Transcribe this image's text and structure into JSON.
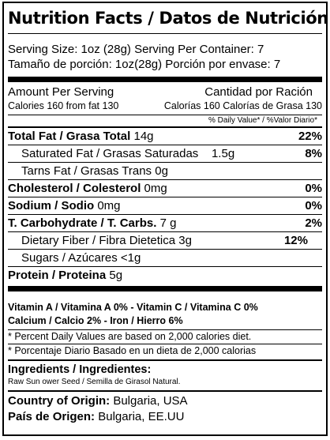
{
  "title": "Nutrition Facts / Datos de Nutrición",
  "serving": {
    "line_en": "Serving Size: 1oz (28g) Serving Per Container: 7",
    "line_es": "Tamaño de porción: 1oz(28g) Porción por envase: 7"
  },
  "amount": {
    "header_en": "Amount Per Serving",
    "header_es": "Cantidad por Ración",
    "calories_en": "Calories 160  from fat 130",
    "calories_es": "Calorías 160 Calorías de Grasa 130",
    "dv_header": "% Daily Value* / %Valor Diario*"
  },
  "nutrients": [
    {
      "name": "Total Fat / Grasa Total",
      "amount": "14g",
      "dv": "22%",
      "bold": true,
      "indent": false
    },
    {
      "name": "Saturated Fat / Grasas Saturadas",
      "amount": "1.5g",
      "dv": "8%",
      "bold": false,
      "indent": true
    },
    {
      "name": "Tarns Fat / Grasas Trans",
      "amount": "0g",
      "dv": "",
      "bold": false,
      "indent": true
    },
    {
      "name": "Cholesterol / Colesterol",
      "amount": "0mg",
      "dv": "0%",
      "bold": true,
      "indent": false
    },
    {
      "name": "Sodium / Sodio",
      "amount": "0mg",
      "dv": "0%",
      "bold": true,
      "indent": false
    },
    {
      "name": "T. Carbohydrate / T. Carbs.",
      "amount": "7 g",
      "dv": "2%",
      "bold": true,
      "indent": false
    },
    {
      "name": "Dietary Fiber / Fibra Dietetica",
      "amount": "3g",
      "dv": "12%",
      "bold": false,
      "indent": true
    },
    {
      "name": "Sugars / Azúcares",
      "amount": "<1g",
      "dv": "",
      "bold": false,
      "indent": true
    },
    {
      "name": "Protein / Proteina",
      "amount": "5g",
      "dv": "",
      "bold": true,
      "indent": false
    }
  ],
  "vitamins": {
    "line1": "Vitamin A / Vitamina A 0%  - Vitamin C / Vitamina C 0%",
    "line2": "Calcium / Calcio 2%  -  Iron / Hierro 6%"
  },
  "footnotes": {
    "en": "* Percent Daily Values are based on 2,000 calories diet.",
    "es": "* Porcentaje Diario Basado en un dieta de 2,000 calorias"
  },
  "ingredients": {
    "header": "Ingredients / Ingredientes:",
    "text": "Raw Sun   ower Seed  /  Semilla de Girasol Natural."
  },
  "origin": {
    "en_label": "Country of Origin:",
    "en_value": "Bulgaria, USA",
    "es_label": "País de Origen:",
    "es_value": "Bulgaria, EE.UU"
  }
}
